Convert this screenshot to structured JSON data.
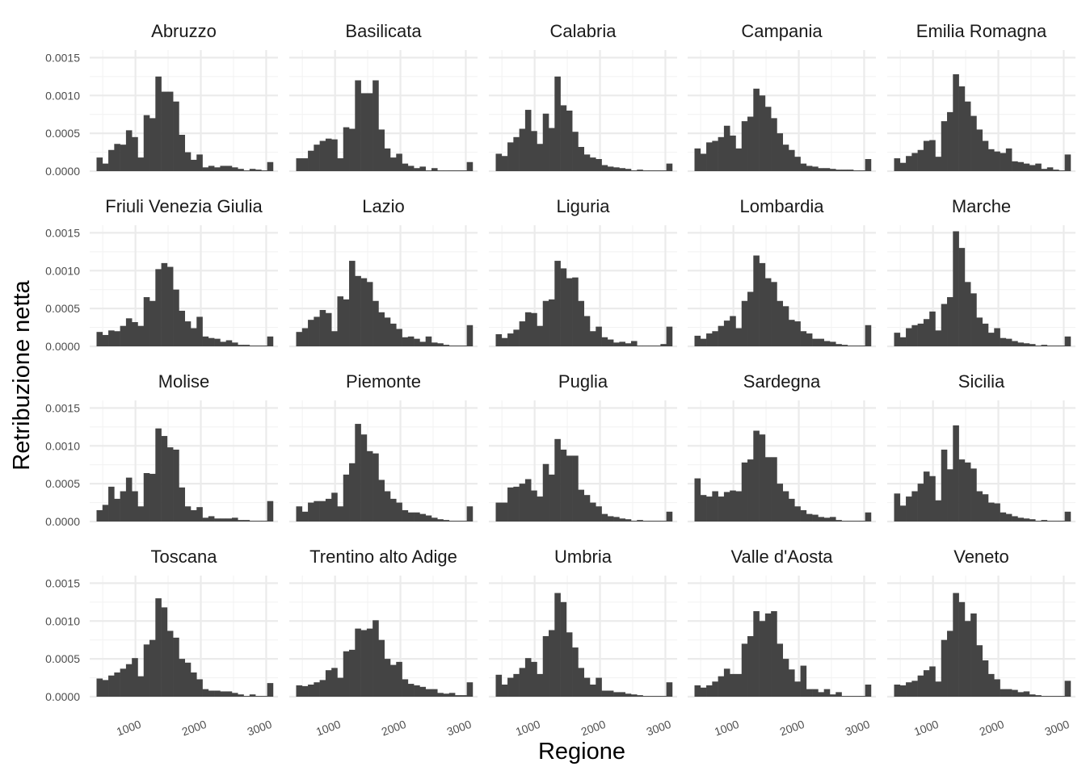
{
  "chart_data": {
    "type": "bar",
    "subtype": "faceted-histogram",
    "xlabel": "Regione",
    "ylabel": "Retribuzione netta",
    "x_ticks": [
      1000,
      2000,
      3000
    ],
    "x_tick_labels": [
      "1000",
      "2000",
      "3000"
    ],
    "y_ticks": [
      0,
      0.0005,
      0.001,
      0.0015
    ],
    "y_tick_labels": [
      "0.0000",
      "0.0005",
      "0.0010",
      "0.0015"
    ],
    "xlim": [
      300,
      3180
    ],
    "ylim": [
      0,
      0.0016
    ],
    "bins": {
      "start": 450,
      "width": 90,
      "count": 30
    },
    "grid": true,
    "colors": {
      "bar": "#444444",
      "grid": "#ebebeb",
      "background": "#ffffff"
    },
    "facets": [
      {
        "name": "Abruzzo",
        "values": [
          0.00018,
          0.0001,
          0.00028,
          0.00036,
          0.00035,
          0.00054,
          0.00045,
          0.00018,
          0.00074,
          0.0007,
          0.00125,
          0.00105,
          0.00105,
          0.00092,
          0.00048,
          0.00025,
          0.00015,
          0.00022,
          5e-05,
          7e-05,
          5e-05,
          7e-05,
          7e-05,
          5e-05,
          3e-05,
          1e-05,
          3e-05,
          2e-05,
          1e-05,
          0.00012
        ]
      },
      {
        "name": "Basilicata",
        "values": [
          0.00017,
          0.00017,
          0.00027,
          0.00035,
          0.0004,
          0.00043,
          0.00042,
          0.00017,
          0.00058,
          0.00056,
          0.0012,
          0.00103,
          0.00103,
          0.0012,
          0.00055,
          0.0003,
          0.00018,
          0.00023,
          0.0001,
          7e-05,
          4e-05,
          6e-05,
          1e-05,
          4e-05,
          1e-05,
          1e-05,
          1e-05,
          1e-05,
          1e-05,
          0.00012
        ]
      },
      {
        "name": "Calabria",
        "values": [
          0.00023,
          0.0002,
          0.00038,
          0.00045,
          0.00056,
          0.00081,
          0.00053,
          0.00036,
          0.00076,
          0.00057,
          0.00125,
          0.00087,
          0.0008,
          0.00052,
          0.00032,
          0.00022,
          0.00018,
          0.00016,
          8e-05,
          6e-05,
          5e-05,
          4e-05,
          3e-05,
          1e-05,
          2e-05,
          1e-05,
          1e-05,
          1e-05,
          1e-05,
          0.0001
        ]
      },
      {
        "name": "Campania",
        "values": [
          0.0003,
          0.00023,
          0.00038,
          0.0004,
          0.00045,
          0.0006,
          0.00047,
          0.0003,
          0.00066,
          0.00072,
          0.00109,
          0.001,
          0.00085,
          0.0007,
          0.0005,
          0.00035,
          0.00028,
          0.00019,
          0.0001,
          7e-05,
          6e-05,
          4e-05,
          4e-05,
          3e-05,
          2e-05,
          2e-05,
          2e-05,
          1e-05,
          1e-05,
          0.00016
        ]
      },
      {
        "name": "Emilia Romagna",
        "values": [
          0.00017,
          0.00011,
          0.0002,
          0.00024,
          0.00028,
          0.0004,
          0.00041,
          0.00019,
          0.00066,
          0.00078,
          0.00128,
          0.00112,
          0.00092,
          0.00073,
          0.00055,
          0.0004,
          0.00029,
          0.00026,
          0.00024,
          0.0003,
          0.00013,
          0.00012,
          0.0001,
          8e-05,
          0.0001,
          3e-05,
          5e-05,
          2e-05,
          1e-05,
          0.00022
        ]
      },
      {
        "name": "Friuli Venezia Giulia",
        "values": [
          0.00019,
          0.00015,
          0.00021,
          0.0002,
          0.00027,
          0.00037,
          0.00032,
          0.00027,
          0.00065,
          0.0006,
          0.00102,
          0.0011,
          0.00105,
          0.00075,
          0.00047,
          0.00033,
          0.00024,
          0.00039,
          0.00013,
          0.00011,
          0.0001,
          6e-05,
          8e-05,
          5e-05,
          2e-05,
          2e-05,
          1e-05,
          1e-05,
          1e-05,
          0.00013
        ]
      },
      {
        "name": "Lazio",
        "values": [
          0.00019,
          0.00024,
          0.00035,
          0.00039,
          0.00048,
          0.00044,
          0.0002,
          0.00066,
          0.00062,
          0.00113,
          0.00093,
          0.0009,
          0.00085,
          0.0006,
          0.00045,
          0.00038,
          0.0003,
          0.00023,
          0.00012,
          0.00013,
          0.0001,
          6e-05,
          0.00013,
          5e-05,
          4e-05,
          2e-05,
          1e-05,
          1e-05,
          1e-05,
          0.00028
        ]
      },
      {
        "name": "Liguria",
        "values": [
          0.00016,
          0.00011,
          0.00017,
          0.00022,
          0.00033,
          0.00045,
          0.00044,
          0.00027,
          0.0006,
          0.00062,
          0.00113,
          0.00103,
          0.0009,
          0.00091,
          0.0006,
          0.0004,
          0.0002,
          0.00026,
          0.00012,
          9e-05,
          5e-05,
          6e-05,
          4e-05,
          7e-05,
          1e-05,
          1e-05,
          1e-05,
          1e-05,
          3e-05,
          0.00026
        ]
      },
      {
        "name": "Lombardia",
        "values": [
          0.00014,
          0.0001,
          0.00017,
          0.0002,
          0.00027,
          0.00034,
          0.0004,
          0.00024,
          0.0006,
          0.00072,
          0.0012,
          0.0011,
          0.0009,
          0.00085,
          0.0006,
          0.00053,
          0.00035,
          0.00033,
          0.0002,
          0.00017,
          0.0001,
          0.0001,
          7e-05,
          6e-05,
          3e-05,
          2e-05,
          1e-05,
          1e-05,
          1e-05,
          0.00028
        ]
      },
      {
        "name": "Marche",
        "values": [
          0.00018,
          0.00012,
          0.00024,
          0.00028,
          0.0003,
          0.00036,
          0.00046,
          0.00021,
          0.00056,
          0.00065,
          0.00152,
          0.0013,
          0.00085,
          0.0007,
          0.00038,
          0.0003,
          0.00018,
          0.00024,
          0.00011,
          0.0001,
          7e-05,
          5e-05,
          4e-05,
          3e-05,
          1e-05,
          2e-05,
          1e-05,
          1e-05,
          1e-05,
          0.00013
        ]
      },
      {
        "name": "Molise",
        "values": [
          0.00015,
          0.00022,
          0.00046,
          0.0003,
          0.0004,
          0.00058,
          0.0004,
          0.0002,
          0.00064,
          0.00063,
          0.00123,
          0.00113,
          0.00098,
          0.00095,
          0.00045,
          0.0002,
          0.00015,
          0.00019,
          5e-05,
          7e-05,
          4e-05,
          4e-05,
          4e-05,
          5e-05,
          2e-05,
          2e-05,
          1e-05,
          1e-05,
          1e-05,
          0.00027
        ]
      },
      {
        "name": "Piemonte",
        "values": [
          0.0002,
          0.00013,
          0.00025,
          0.00027,
          0.00027,
          0.0003,
          0.00038,
          0.0002,
          0.00062,
          0.00077,
          0.00129,
          0.00115,
          0.00093,
          0.0009,
          0.00055,
          0.0004,
          0.0003,
          0.00025,
          0.00015,
          0.00012,
          0.00012,
          0.0001,
          8e-05,
          5e-05,
          3e-05,
          2e-05,
          1e-05,
          1e-05,
          1e-05,
          0.0002
        ]
      },
      {
        "name": "Puglia",
        "values": [
          0.00025,
          0.00025,
          0.00045,
          0.00046,
          0.0005,
          0.00056,
          0.00041,
          0.00033,
          0.00076,
          0.00062,
          0.00109,
          0.00095,
          0.00087,
          0.00087,
          0.00042,
          0.00035,
          0.00025,
          0.0002,
          0.0001,
          7e-05,
          6e-05,
          4e-05,
          3e-05,
          1e-05,
          2e-05,
          1e-05,
          1e-05,
          1e-05,
          1e-05,
          0.00013
        ]
      },
      {
        "name": "Sardegna",
        "values": [
          0.00057,
          0.00035,
          0.00033,
          0.0004,
          0.00033,
          0.00039,
          0.00041,
          0.0004,
          0.00078,
          0.00082,
          0.0012,
          0.00115,
          0.00085,
          0.00085,
          0.0005,
          0.0004,
          0.0003,
          0.0002,
          0.00015,
          0.0001,
          9e-05,
          6e-05,
          5e-05,
          6e-05,
          2e-05,
          1e-05,
          1e-05,
          1e-05,
          1e-05,
          0.00012
        ]
      },
      {
        "name": "Sicilia",
        "values": [
          0.00037,
          0.00021,
          0.00033,
          0.0004,
          0.0005,
          0.00066,
          0.0006,
          0.00028,
          0.00095,
          0.00069,
          0.00127,
          0.00082,
          0.00078,
          0.0007,
          0.0004,
          0.00036,
          0.00025,
          0.00024,
          0.00012,
          0.0001,
          7e-05,
          5e-05,
          4e-05,
          3e-05,
          1e-05,
          2e-05,
          1e-05,
          1e-05,
          1e-05,
          0.00013
        ]
      },
      {
        "name": "Toscana",
        "values": [
          0.00024,
          0.00022,
          0.00028,
          0.00032,
          0.00037,
          0.00043,
          0.00051,
          0.00027,
          0.00069,
          0.00075,
          0.0013,
          0.00118,
          0.00087,
          0.00078,
          0.0005,
          0.00045,
          0.00032,
          0.00023,
          0.0001,
          8e-05,
          8e-05,
          7e-05,
          7e-05,
          5e-05,
          3e-05,
          1e-05,
          3e-05,
          1e-05,
          1e-05,
          0.00018
        ]
      },
      {
        "name": "Trentino alto Adige",
        "values": [
          0.00015,
          0.00014,
          0.00016,
          0.00019,
          0.00022,
          0.00035,
          0.00038,
          0.00025,
          0.0006,
          0.00062,
          0.0009,
          0.00088,
          0.0009,
          0.00101,
          0.00075,
          0.0005,
          0.00042,
          0.00046,
          0.00023,
          0.00017,
          0.00015,
          0.00013,
          0.0001,
          0.0001,
          5e-05,
          4e-05,
          5e-05,
          2e-05,
          2e-05,
          0.00019
        ]
      },
      {
        "name": "Umbria",
        "values": [
          0.00029,
          0.00016,
          0.00025,
          0.0003,
          0.00038,
          0.00051,
          0.00046,
          0.0003,
          0.0008,
          0.00088,
          0.00137,
          0.00125,
          0.00085,
          0.00065,
          0.00038,
          0.00025,
          0.00016,
          0.00025,
          8e-05,
          8e-05,
          6e-05,
          6e-05,
          4e-05,
          3e-05,
          2e-05,
          1e-05,
          1e-05,
          1e-05,
          1e-05,
          0.00019
        ]
      },
      {
        "name": "Valle d'Aosta",
        "values": [
          0.00015,
          0.00012,
          0.00015,
          0.0002,
          0.00027,
          0.00037,
          0.0003,
          0.0003,
          0.0007,
          0.0008,
          0.00113,
          0.001,
          0.0011,
          0.00113,
          0.0007,
          0.0005,
          0.00036,
          0.0002,
          0.00041,
          0.0001,
          0.0001,
          6e-05,
          0.0001,
          3e-05,
          6e-05,
          1e-05,
          1e-05,
          1e-05,
          1e-05,
          0.00016
        ]
      },
      {
        "name": "Veneto",
        "values": [
          0.00016,
          0.00015,
          0.00019,
          0.00021,
          0.00028,
          0.00035,
          0.0004,
          0.0002,
          0.00075,
          0.00087,
          0.00137,
          0.00125,
          0.001,
          0.0011,
          0.00068,
          0.00048,
          0.0003,
          0.00023,
          0.0001,
          0.0001,
          9e-05,
          6e-05,
          7e-05,
          3e-05,
          2e-05,
          1e-05,
          1e-05,
          1e-05,
          1e-05,
          0.00021
        ]
      }
    ]
  }
}
